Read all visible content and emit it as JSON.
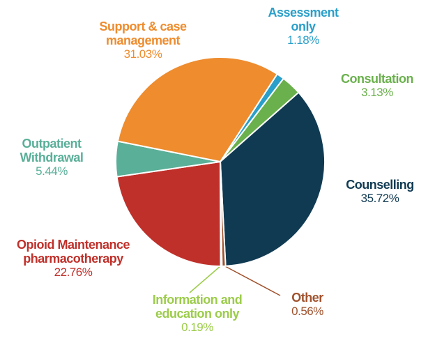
{
  "chart_data": {
    "type": "pie",
    "categories": [
      "Assessment only",
      "Consultation",
      "Counselling",
      "Other",
      "Information and education only",
      "Opioid Maintenance pharmacotherapy",
      "Outpatient Withdrawal",
      "Support & case management"
    ],
    "values": [
      1.18,
      3.13,
      35.72,
      0.56,
      0.19,
      22.76,
      5.44,
      31.03
    ],
    "value_labels": [
      "1.18%",
      "3.13%",
      "35.72%",
      "0.56%",
      "0.19%",
      "22.76%",
      "5.44%",
      "31.03%"
    ],
    "colors": [
      "#2a9fc9",
      "#6ab04c",
      "#103a52",
      "#a0522d",
      "#9ccc4a",
      "#c0302a",
      "#5aaf98",
      "#ee8c2e"
    ]
  }
}
